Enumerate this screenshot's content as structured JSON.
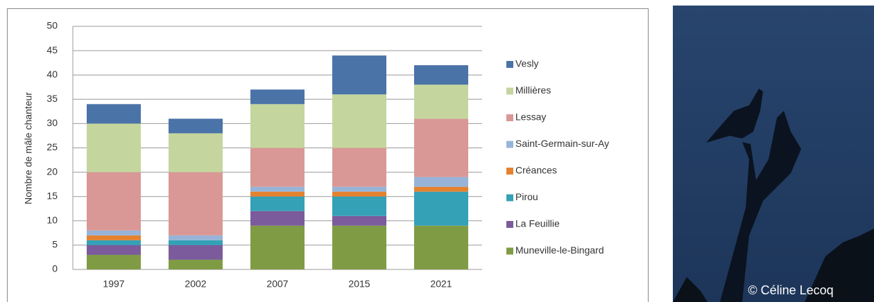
{
  "chart_data": {
    "type": "stacked_bar",
    "y_label": "Nombre de mâle chanteur",
    "categories": [
      "1997",
      "2002",
      "2007",
      "2015",
      "2021"
    ],
    "series": [
      {
        "name": "Muneville-le-Bingard",
        "color": "#7f9c45",
        "values": [
          3,
          2,
          9,
          9,
          9
        ]
      },
      {
        "name": "La Feuillie",
        "color": "#7b5b9b",
        "values": [
          2,
          3,
          3,
          2,
          0
        ]
      },
      {
        "name": "Pirou",
        "color": "#35a1b6",
        "values": [
          1,
          1,
          3,
          4,
          7
        ]
      },
      {
        "name": "Créances",
        "color": "#e4822f",
        "values": [
          1,
          0,
          1,
          1,
          1
        ]
      },
      {
        "name": "Saint-Germain-sur-Ay",
        "color": "#97b4d8",
        "values": [
          1,
          1,
          1,
          1,
          2
        ]
      },
      {
        "name": "Lessay",
        "color": "#d99896",
        "values": [
          12,
          13,
          8,
          8,
          12
        ]
      },
      {
        "name": "Millières",
        "color": "#c4d69d",
        "values": [
          10,
          8,
          9,
          11,
          7
        ]
      },
      {
        "name": "Vesly",
        "color": "#4a73a8",
        "values": [
          4,
          3,
          3,
          8,
          4
        ]
      }
    ],
    "ylim": [
      0,
      50
    ],
    "yticks": [
      0,
      5,
      10,
      15,
      20,
      25,
      30,
      35,
      40,
      45,
      50
    ],
    "grid": true
  },
  "photo_credit": "© Céline Lecoq"
}
